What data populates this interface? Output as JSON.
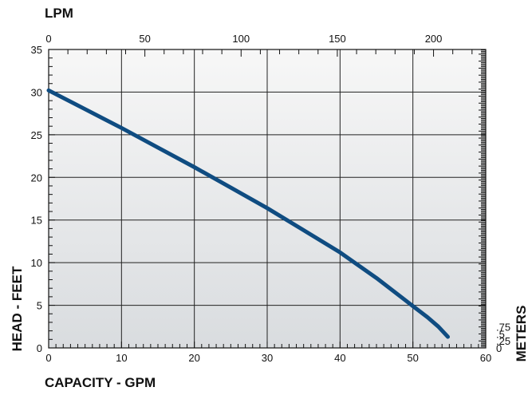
{
  "chart_data": {
    "type": "line",
    "title": "",
    "xlabel": "CAPACITY - GPM",
    "ylabel": "HEAD - FEET",
    "x2label": "LPM",
    "y2label": "METERS",
    "xlim": [
      0,
      60
    ],
    "ylim": [
      0,
      35
    ],
    "x_ticks": [
      "0",
      "10",
      "20",
      "30",
      "40",
      "50",
      "60"
    ],
    "y_ticks": [
      "0",
      "5",
      "10",
      "15",
      "20",
      "25",
      "30",
      "35"
    ],
    "x2_ticks": [
      "0",
      "50",
      "100",
      "150",
      "200"
    ],
    "y2_ticks": [
      "0",
      ".25",
      ".5",
      ".75"
    ],
    "grid": true,
    "series": [
      {
        "color": "#0f4c81",
        "x": [
          0,
          5,
          10,
          15,
          20,
          25,
          30,
          35,
          40,
          45,
          50,
          52,
          53.5,
          54.8
        ],
        "y": [
          30.2,
          28.0,
          25.8,
          23.5,
          21.2,
          18.8,
          16.4,
          13.8,
          11.2,
          8.2,
          4.9,
          3.6,
          2.5,
          1.3
        ]
      }
    ]
  }
}
